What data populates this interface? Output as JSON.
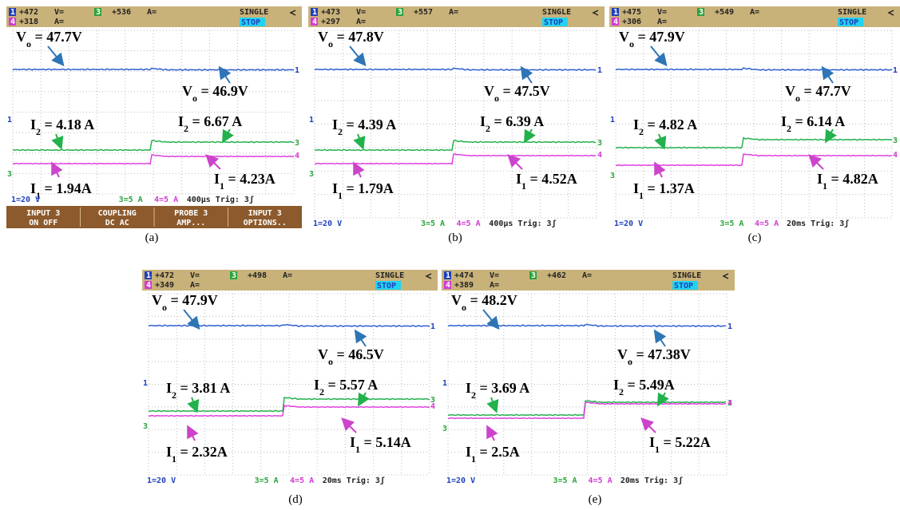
{
  "panels": [
    {
      "caption": "(a)",
      "header": {
        "ch1": "1",
        "ch1_value": "+472",
        "ch1_unit": "V=",
        "ch3": "3",
        "ch3_value": "+536",
        "ch3_unit": "A=",
        "ch4": "4",
        "ch4_value": "+318",
        "ch4_unit": "A=",
        "mode": "SINGLE",
        "status": "STOP"
      },
      "footer": {
        "ch1_scale": "1=20 V",
        "ch3_scale": "3=5 A",
        "ch4_scale": "4=5 A",
        "timebase": "400µs Trig: 3ʃ"
      },
      "menu": [
        {
          "title": "INPUT 3",
          "options": "ON OFF"
        },
        {
          "title": "COUPLING",
          "options": "DC AC"
        },
        {
          "title": "PROBE 3",
          "options": "AMP..."
        },
        {
          "title": "INPUT 3",
          "options": "OPTIONS.."
        }
      ],
      "annotations": [
        {
          "var": "V",
          "sub": "o",
          "text": " = 47.7V"
        },
        {
          "var": "V",
          "sub": "o",
          "text": " = 46.9V"
        },
        {
          "var": "I",
          "sub": "2",
          "text": " = 4.18 A"
        },
        {
          "var": "I",
          "sub": "2",
          "text": " = 6.67 A"
        },
        {
          "var": "I",
          "sub": "1",
          "text": " = 1.94A"
        },
        {
          "var": "I",
          "sub": "1",
          "text": " = 4.23A"
        }
      ]
    },
    {
      "caption": "(b)",
      "header": {
        "ch1": "1",
        "ch1_value": "+473",
        "ch1_unit": "V=",
        "ch3": "3",
        "ch3_value": "+557",
        "ch3_unit": "A=",
        "ch4": "4",
        "ch4_value": "+297",
        "ch4_unit": "A=",
        "mode": "SINGLE",
        "status": "STOP"
      },
      "footer": {
        "ch1_scale": "1=20 V",
        "ch3_scale": "3=5 A",
        "ch4_scale": "4=5 A",
        "timebase": "400µs Trig: 3ʃ"
      },
      "annotations": [
        {
          "var": "V",
          "sub": "o",
          "text": " = 47.8V"
        },
        {
          "var": "V",
          "sub": "o",
          "text": " = 47.5V"
        },
        {
          "var": "I",
          "sub": "2",
          "text": " = 4.39 A"
        },
        {
          "var": "I",
          "sub": "2",
          "text": " = 6.39 A"
        },
        {
          "var": "I",
          "sub": "1",
          "text": " = 1.79A"
        },
        {
          "var": "I",
          "sub": "1",
          "text": " = 4.52A"
        }
      ]
    },
    {
      "caption": "(c)",
      "header": {
        "ch1": "1",
        "ch1_value": "+475",
        "ch1_unit": "V=",
        "ch3": "3",
        "ch3_value": "+549",
        "ch3_unit": "A=",
        "ch4": "4",
        "ch4_value": "+306",
        "ch4_unit": "A=",
        "mode": "SINGLE",
        "status": "STOP"
      },
      "footer": {
        "ch1_scale": "1=20 V",
        "ch3_scale": "3=5 A",
        "ch4_scale": "4=5 A",
        "timebase": "20ms Trig: 3ʃ"
      },
      "annotations": [
        {
          "var": "V",
          "sub": "o",
          "text": " = 47.9V"
        },
        {
          "var": "V",
          "sub": "o",
          "text": " = 47.7V"
        },
        {
          "var": "I",
          "sub": "2",
          "text": " = 4.82 A"
        },
        {
          "var": "I",
          "sub": "2",
          "text": " = 6.14 A"
        },
        {
          "var": "I",
          "sub": "1",
          "text": " = 1.37A"
        },
        {
          "var": "I",
          "sub": "1",
          "text": " = 4.82A"
        }
      ]
    },
    {
      "caption": "(d)",
      "header": {
        "ch1": "1",
        "ch1_value": "+472",
        "ch1_unit": "V=",
        "ch3": "3",
        "ch3_value": "+498",
        "ch3_unit": "A=",
        "ch4": "4",
        "ch4_value": "+349",
        "ch4_unit": "A=",
        "mode": "SINGLE",
        "status": "STOP"
      },
      "footer": {
        "ch1_scale": "1=20 V",
        "ch3_scale": "3=5 A",
        "ch4_scale": "4=5 A",
        "timebase": "20ms Trig: 3ʃ"
      },
      "annotations": [
        {
          "var": "V",
          "sub": "o",
          "text": " = 47.9V"
        },
        {
          "var": "V",
          "sub": "o",
          "text": " = 46.5V"
        },
        {
          "var": "I",
          "sub": "2",
          "text": " = 3.81 A"
        },
        {
          "var": "I",
          "sub": "2",
          "text": " = 5.57 A"
        },
        {
          "var": "I",
          "sub": "1",
          "text": " = 2.32A"
        },
        {
          "var": "I",
          "sub": "1",
          "text": " = 5.14A"
        }
      ]
    },
    {
      "caption": "(e)",
      "header": {
        "ch1": "1",
        "ch1_value": "+474",
        "ch1_unit": "V=",
        "ch3": "3",
        "ch3_value": "+462",
        "ch3_unit": "A=",
        "ch4": "4",
        "ch4_value": "+389",
        "ch4_unit": "A=",
        "mode": "SINGLE",
        "status": "STOP"
      },
      "footer": {
        "ch1_scale": "1=20 V",
        "ch3_scale": "3=5 A",
        "ch4_scale": "4=5 A",
        "timebase": "20ms Trig: 3ʃ"
      },
      "annotations": [
        {
          "var": "V",
          "sub": "o",
          "text": " = 48.2V"
        },
        {
          "var": "V",
          "sub": "o",
          "text": " = 47.38V"
        },
        {
          "var": "I",
          "sub": "2",
          "text": " = 3.69 A"
        },
        {
          "var": "I",
          "sub": "2",
          "text": " = 5.49A"
        },
        {
          "var": "I",
          "sub": "1",
          "text": " = 2.5A"
        },
        {
          "var": "I",
          "sub": "1",
          "text": " = 5.22A"
        }
      ]
    }
  ]
}
